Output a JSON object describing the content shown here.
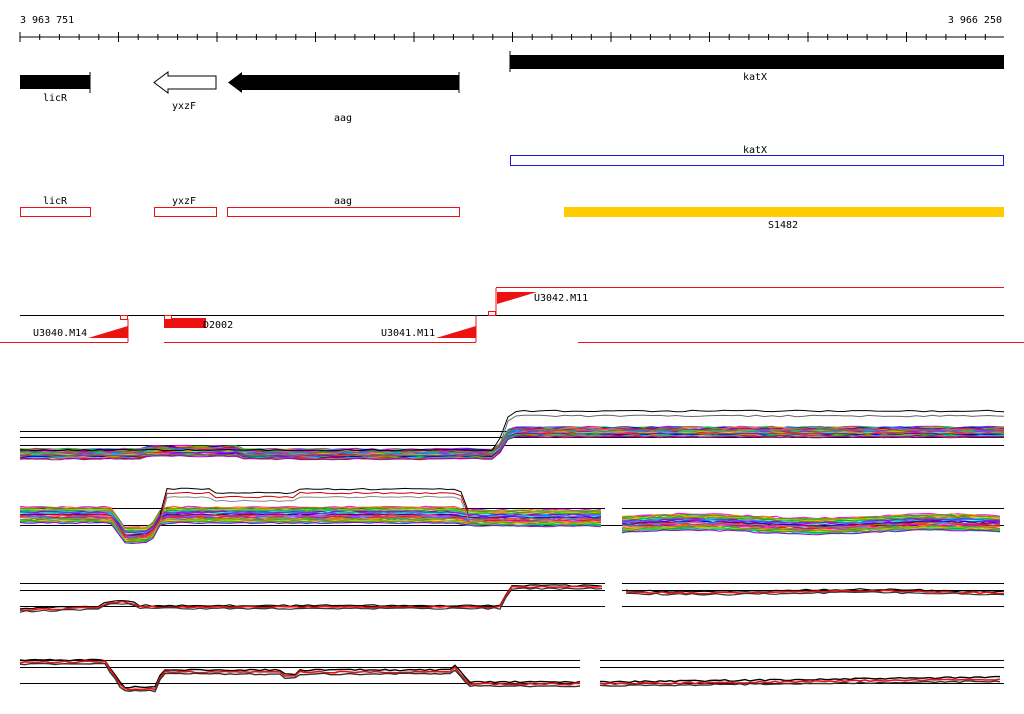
{
  "ruler": {
    "start_label": "3 963 751",
    "end_label": "3 966 250"
  },
  "colors": {
    "gene": "#000000",
    "outline_red": "#ee1111",
    "outline_blue": "#1a1acc",
    "srna": "#ffcc00",
    "trend_red": "#ee1111"
  },
  "annotation_genes": [
    {
      "id": "licR",
      "label": "licR",
      "style": "solid-bar"
    },
    {
      "id": "yxzF",
      "label": "yxzF",
      "style": "hollow-arrow-left"
    },
    {
      "id": "aag",
      "label": "aag",
      "style": "solid-arrow-left"
    },
    {
      "id": "katX",
      "label": "katX",
      "style": "solid-bar"
    }
  ],
  "blue_features": [
    {
      "id": "katX-box",
      "label": "katX"
    }
  ],
  "red_boxes": [
    {
      "id": "licR-box",
      "label": "licR"
    },
    {
      "id": "yxzF-box",
      "label": "yxzF"
    },
    {
      "id": "aag-box",
      "label": "aag"
    }
  ],
  "srna": {
    "label": "S1482"
  },
  "transcription_units": [
    {
      "id": "u3040",
      "label": "U3040.M14"
    },
    {
      "id": "d2002",
      "label": "D2002"
    },
    {
      "id": "u3041",
      "label": "U3041.M11"
    },
    {
      "id": "u3042",
      "label": "U3042.M11"
    }
  ],
  "expression_tracks": [
    {
      "id": "track-1",
      "kind": "multi-series"
    },
    {
      "id": "track-2",
      "kind": "multi-series"
    },
    {
      "id": "track-3",
      "kind": "summary"
    },
    {
      "id": "track-4",
      "kind": "summary"
    }
  ]
}
